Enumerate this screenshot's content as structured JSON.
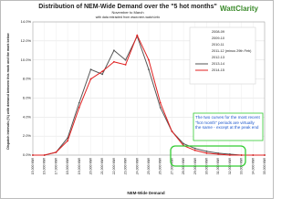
{
  "chart_data": {
    "type": "line",
    "title": "Distribution of NEM-Wide Demand over the \"5 hot months\"",
    "subtitle": "November to March",
    "source_note": "with data extracted from www.nem-watch.info",
    "logo": "WattClarity",
    "y_label": "Dispatch intervals (%) with demand between this mark and the mark below",
    "x_label": "NEM-Wide Demand",
    "annotation": "The two curves for the most recent \"hot month\" periods are virtually the same - except at the peak end",
    "categories": [
      "15,000 MW",
      "16,000 MW",
      "17,000 MW",
      "18,000 MW",
      "19,000 MW",
      "20,000 MW",
      "21,000 MW",
      "22,000 MW",
      "23,000 MW",
      "24,000 MW",
      "25,000 MW",
      "26,000 MW",
      "27,000 MW",
      "28,000 MW",
      "29,000 MW",
      "30,000 MW",
      "31,000 MW",
      "32,000 MW",
      "33,000 MW",
      "34,000 MW",
      "35,000 MW"
    ],
    "other_legend_entries": [
      "2008-09",
      "2009-10",
      "2010-11",
      "2011-12 (minus 29th Feb)",
      "2012-13"
    ],
    "series": [
      {
        "name": "2013-14",
        "color": "#555555",
        "values": [
          0,
          0,
          0.3,
          1.8,
          5.5,
          9,
          8.5,
          11,
          10,
          12.5,
          9,
          5,
          2.5,
          1.2,
          0.7,
          0.4,
          0.2,
          0.1,
          0,
          0,
          0
        ]
      },
      {
        "name": "2014-15",
        "color": "#e02020",
        "values": [
          0,
          0,
          0.3,
          1.5,
          5,
          8,
          8.8,
          9.8,
          9.5,
          12.6,
          10,
          5.5,
          2.5,
          1,
          0.5,
          0.2,
          0.1,
          0,
          0,
          0,
          0
        ]
      }
    ],
    "ylim": [
      0,
      14
    ],
    "yticks": [
      {
        "value": 0,
        "label": "0.0%"
      },
      {
        "value": 2,
        "label": "2.0%"
      },
      {
        "value": 4,
        "label": "4.0%"
      },
      {
        "value": 6,
        "label": "6.0%"
      },
      {
        "value": 8,
        "label": "8.0%"
      },
      {
        "value": 10,
        "label": "10.0%"
      },
      {
        "value": 12,
        "label": "12.0%"
      },
      {
        "value": 14,
        "label": "14.0%"
      }
    ],
    "grid": true
  }
}
